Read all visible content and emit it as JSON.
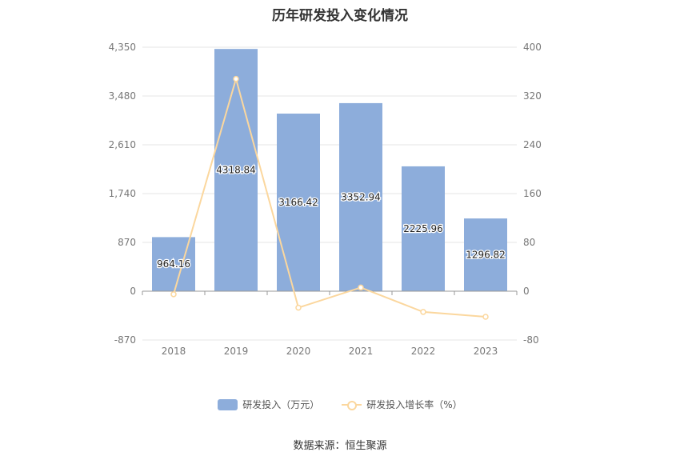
{
  "chart_data": {
    "type": "bar",
    "title": "历年研发投入变化情况",
    "categories": [
      "2018",
      "2019",
      "2020",
      "2021",
      "2022",
      "2023"
    ],
    "series": [
      {
        "name": "研发投入（万元）",
        "type": "bar",
        "axis": "left",
        "values": [
          964.16,
          4318.84,
          3166.42,
          3352.94,
          2225.96,
          1296.82
        ],
        "labels": [
          "964.16",
          "4318.84",
          "3166.42",
          "3352.94",
          "2225.96",
          "1296.82"
        ],
        "color": "#8daddb"
      },
      {
        "name": "研发投入增长率（%）",
        "type": "line",
        "axis": "right",
        "values": [
          -5,
          348,
          -27,
          6,
          -34,
          -42
        ],
        "color": "#fbd79e"
      }
    ],
    "left_axis": {
      "ylim": [
        -870,
        4350
      ],
      "ticks": [
        -870,
        0,
        870,
        1740,
        2610,
        3480,
        4350
      ],
      "tick_labels": [
        "-870",
        "0",
        "870",
        "1,740",
        "2,610",
        "3,480",
        "4,350"
      ]
    },
    "right_axis": {
      "ylim": [
        -80,
        400
      ],
      "ticks": [
        -80,
        0,
        80,
        160,
        240,
        320,
        400
      ],
      "tick_labels": [
        "-80",
        "0",
        "80",
        "160",
        "240",
        "320",
        "400"
      ]
    },
    "grid": true,
    "legend_position": "bottom"
  },
  "legend": {
    "bar_label": "研发投入（万元）",
    "line_label": "研发投入增长率（%）"
  },
  "source": "数据来源：恒生聚源"
}
